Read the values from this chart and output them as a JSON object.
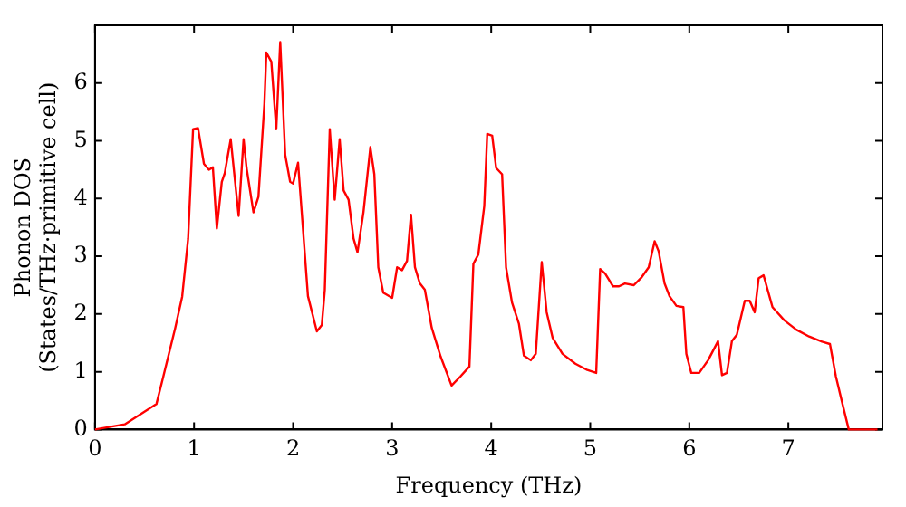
{
  "chart_data": {
    "type": "line",
    "xlabel": "Frequency (THz)",
    "ylabel": "Phonon DOS\n(States/THz·primitive cell)",
    "xlim": [
      0,
      7.95
    ],
    "ylim": [
      0,
      7
    ],
    "xticks": [
      0,
      1,
      2,
      3,
      4,
      5,
      6,
      7
    ],
    "yticks": [
      0,
      1,
      2,
      3,
      4,
      5,
      6
    ],
    "grid": false,
    "legend": false,
    "marker": "none",
    "line_style": "solid",
    "series": [
      {
        "color": "#ff0000",
        "x": [
          0,
          0.3,
          0.62,
          0.69,
          0.81,
          0.88,
          0.94,
          0.99,
          1.04,
          1.1,
          1.15,
          1.19,
          1.23,
          1.28,
          1.31,
          1.37,
          1.4,
          1.45,
          1.5,
          1.53,
          1.6,
          1.65,
          1.71,
          1.73,
          1.78,
          1.83,
          1.87,
          1.92,
          1.97,
          2.0,
          2.05,
          2.15,
          2.24,
          2.29,
          2.32,
          2.37,
          2.42,
          2.47,
          2.51,
          2.56,
          2.61,
          2.65,
          2.71,
          2.78,
          2.82,
          2.86,
          2.91,
          3.0,
          3.05,
          3.1,
          3.15,
          3.19,
          3.23,
          3.28,
          3.33,
          3.4,
          3.49,
          3.6,
          3.69,
          3.78,
          3.82,
          3.87,
          3.93,
          3.96,
          4.01,
          4.05,
          4.11,
          4.15,
          4.21,
          4.28,
          4.33,
          4.4,
          4.45,
          4.51,
          4.56,
          4.62,
          4.72,
          4.85,
          4.97,
          5.06,
          5.1,
          5.15,
          5.23,
          5.29,
          5.35,
          5.44,
          5.52,
          5.59,
          5.65,
          5.69,
          5.75,
          5.8,
          5.87,
          5.94,
          5.97,
          6.02,
          6.1,
          6.19,
          6.29,
          6.33,
          6.38,
          6.43,
          6.48,
          6.56,
          6.61,
          6.66,
          6.7,
          6.75,
          6.84,
          6.96,
          7.08,
          7.21,
          7.34,
          7.42,
          7.48,
          7.55,
          7.61,
          7.9
        ],
        "values": [
          0,
          0.09,
          0.44,
          0.92,
          1.76,
          2.3,
          3.3,
          5.2,
          5.22,
          4.6,
          4.5,
          4.54,
          3.48,
          4.29,
          4.44,
          5.03,
          4.53,
          3.7,
          5.03,
          4.53,
          3.76,
          4.03,
          5.64,
          6.53,
          6.37,
          5.2,
          6.71,
          4.76,
          4.29,
          4.26,
          4.62,
          2.31,
          1.7,
          1.81,
          2.42,
          5.2,
          3.98,
          5.03,
          4.14,
          3.98,
          3.31,
          3.07,
          3.76,
          4.89,
          4.42,
          2.81,
          2.37,
          2.28,
          2.81,
          2.76,
          2.92,
          3.72,
          2.81,
          2.53,
          2.42,
          1.76,
          1.26,
          0.76,
          0.92,
          1.09,
          2.87,
          3.03,
          3.87,
          5.12,
          5.09,
          4.53,
          4.42,
          2.81,
          2.2,
          1.83,
          1.28,
          1.2,
          1.31,
          2.9,
          2.03,
          1.59,
          1.31,
          1.14,
          1.03,
          0.98,
          2.78,
          2.7,
          2.48,
          2.48,
          2.53,
          2.5,
          2.64,
          2.81,
          3.26,
          3.09,
          2.53,
          2.31,
          2.14,
          2.12,
          1.31,
          0.98,
          0.98,
          1.2,
          1.53,
          0.94,
          0.98,
          1.53,
          1.64,
          2.23,
          2.23,
          2.03,
          2.62,
          2.67,
          2.12,
          1.89,
          1.73,
          1.61,
          1.52,
          1.48,
          0.92,
          0.42,
          0,
          0
        ]
      }
    ]
  }
}
